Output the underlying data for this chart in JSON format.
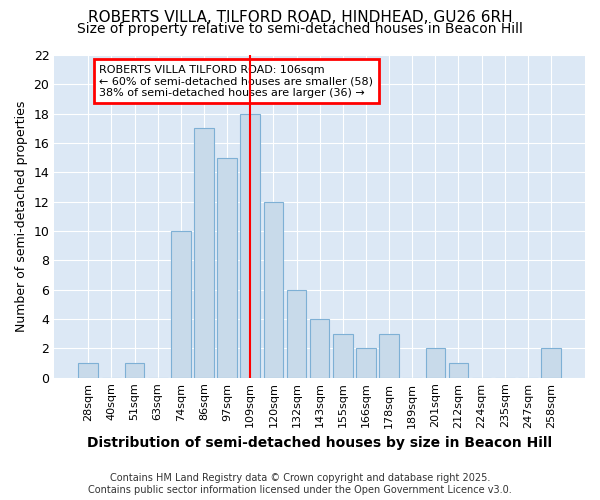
{
  "title1": "ROBERTS VILLA, TILFORD ROAD, HINDHEAD, GU26 6RH",
  "title2": "Size of property relative to semi-detached houses in Beacon Hill",
  "xlabel": "Distribution of semi-detached houses by size in Beacon Hill",
  "ylabel": "Number of semi-detached properties",
  "footer": "Contains HM Land Registry data © Crown copyright and database right 2025.\nContains public sector information licensed under the Open Government Licence v3.0.",
  "bar_labels": [
    "28sqm",
    "40sqm",
    "51sqm",
    "63sqm",
    "74sqm",
    "86sqm",
    "97sqm",
    "109sqm",
    "120sqm",
    "132sqm",
    "143sqm",
    "155sqm",
    "166sqm",
    "178sqm",
    "189sqm",
    "201sqm",
    "212sqm",
    "224sqm",
    "235sqm",
    "247sqm",
    "258sqm"
  ],
  "bar_values": [
    1,
    0,
    1,
    0,
    10,
    17,
    15,
    18,
    12,
    6,
    4,
    3,
    2,
    3,
    0,
    2,
    1,
    0,
    0,
    0,
    2
  ],
  "bar_color": "#c8daea",
  "bar_edge_color": "#7eb0d5",
  "plot_bg_color": "#dce8f5",
  "fig_bg_color": "#ffffff",
  "annotation_title": "ROBERTS VILLA TILFORD ROAD: 106sqm",
  "annotation_line1": "← 60% of semi-detached houses are smaller (58)",
  "annotation_line2": "38% of semi-detached houses are larger (36) →",
  "red_line_x": 7.5,
  "ylim": [
    0,
    22
  ],
  "yticks": [
    0,
    2,
    4,
    6,
    8,
    10,
    12,
    14,
    16,
    18,
    20,
    22
  ],
  "title1_fontsize": 11,
  "title2_fontsize": 10,
  "ylabel_fontsize": 9,
  "xlabel_fontsize": 10,
  "footer_fontsize": 7
}
